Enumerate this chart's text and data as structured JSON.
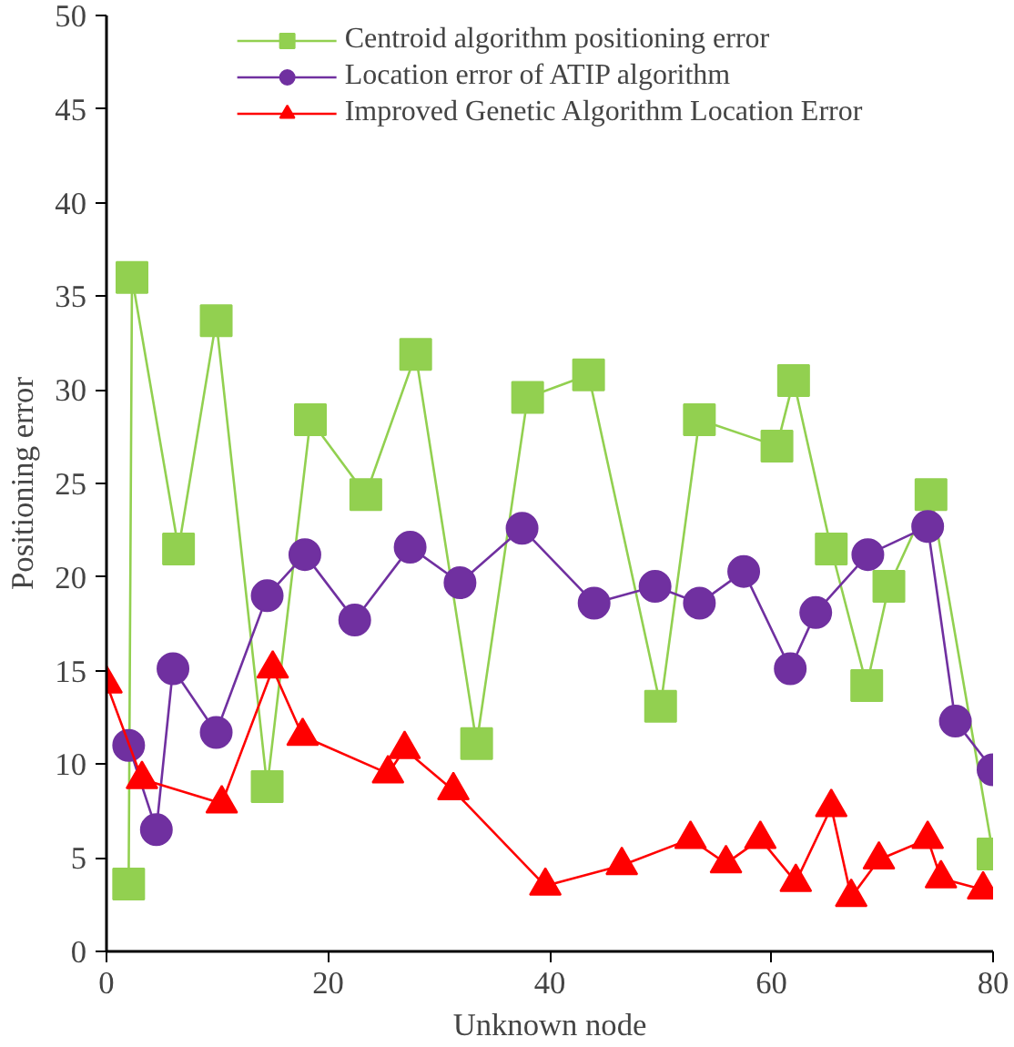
{
  "chart_data": {
    "type": "line",
    "xlabel": "Unknown node",
    "ylabel": "Positioning error",
    "xlim": [
      0,
      80
    ],
    "ylim": [
      0,
      50
    ],
    "xticks": [
      0,
      20,
      40,
      60,
      80
    ],
    "yticks": [
      0,
      5,
      10,
      15,
      20,
      25,
      30,
      35,
      40,
      45,
      50
    ],
    "grid": false,
    "legend": "top",
    "line_style": "solid",
    "series": [
      {
        "name": "Centroid algorithm positioning error",
        "color": "#92d050",
        "marker": "square",
        "x": [
          2.0,
          2.3,
          6.5,
          9.9,
          14.5,
          18.4,
          23.4,
          27.9,
          33.4,
          38.0,
          43.5,
          50.0,
          53.5,
          60.5,
          62.0,
          65.4,
          68.6,
          70.6,
          74.4,
          80
        ],
        "values": [
          3.6,
          36.0,
          21.5,
          33.7,
          8.8,
          28.4,
          24.4,
          31.9,
          11.1,
          29.6,
          30.8,
          13.1,
          28.4,
          27.0,
          30.5,
          21.5,
          14.2,
          19.5,
          24.4,
          5.2
        ]
      },
      {
        "name": "Location error of ATIP algorithm",
        "color": "#7030a0",
        "marker": "circle",
        "x": [
          2.0,
          4.5,
          6.0,
          9.9,
          14.5,
          17.9,
          22.4,
          27.4,
          31.9,
          37.5,
          44.0,
          49.5,
          53.5,
          57.5,
          61.7,
          64.0,
          68.7,
          74.1,
          76.6,
          80
        ],
        "values": [
          11.0,
          6.5,
          15.1,
          11.7,
          19.0,
          21.2,
          17.7,
          21.6,
          19.7,
          22.6,
          18.6,
          19.5,
          18.6,
          20.3,
          15.1,
          18.1,
          21.2,
          22.7,
          12.3,
          9.7
        ]
      },
      {
        "name": "Improved Genetic Algorithm Location Error",
        "color": "#ff0000",
        "marker": "triangle",
        "x": [
          0,
          3.2,
          10.4,
          15.0,
          17.7,
          25.4,
          26.9,
          31.3,
          39.6,
          46.5,
          52.7,
          55.9,
          59.0,
          62.2,
          65.4,
          67.2,
          69.7,
          74.1,
          75.3,
          79.1
        ],
        "values": [
          14.3,
          9.2,
          7.9,
          15.1,
          11.5,
          9.5,
          10.8,
          8.6,
          3.5,
          4.6,
          6.0,
          4.7,
          6.0,
          3.7,
          7.7,
          2.9,
          4.9,
          6.0,
          3.9,
          3.3
        ]
      }
    ]
  }
}
